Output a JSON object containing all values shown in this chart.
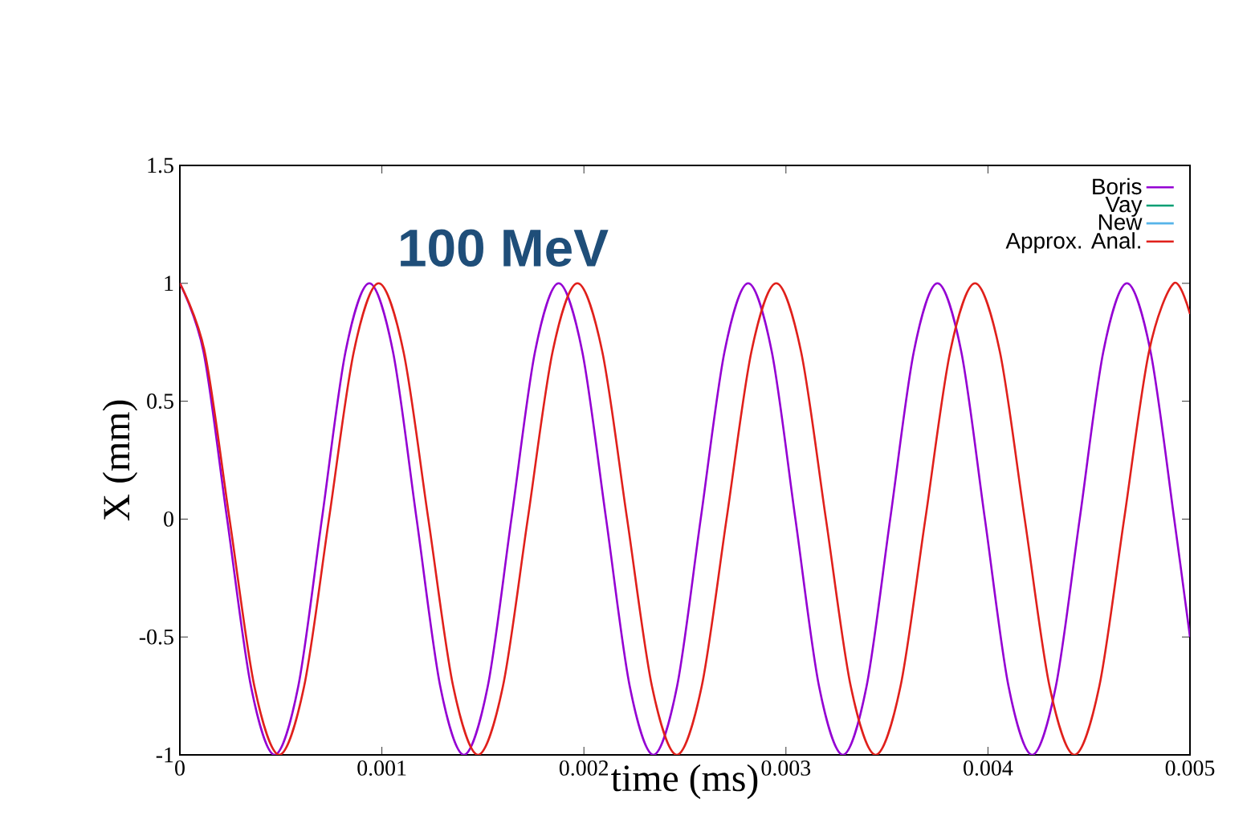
{
  "chart_data": {
    "type": "line",
    "title": "100 MeV",
    "xlabel": "time (ms)",
    "ylabel": "X (mm)",
    "xlim": [
      0,
      0.005
    ],
    "ylim": [
      -1,
      1.5
    ],
    "xticks": [
      0,
      0.001,
      0.002,
      0.003,
      0.004,
      0.005
    ],
    "yticks": [
      -1,
      -0.5,
      0,
      0.5,
      1,
      1.5
    ],
    "legend": "top right",
    "marker": "none",
    "series": [
      {
        "name": "Boris",
        "color": "#9400d3",
        "x": [
          0,
          0.000117,
          0.000234,
          0.000352,
          0.000469,
          0.000586,
          0.000703,
          0.00082,
          0.000938,
          0.001055,
          0.001172,
          0.001289,
          0.001406,
          0.001524,
          0.001641,
          0.001758,
          0.001875,
          0.001992,
          0.00211,
          0.002227,
          0.002344,
          0.002461,
          0.002578,
          0.002696,
          0.002813,
          0.00293,
          0.003047,
          0.003164,
          0.003282,
          0.003399,
          0.003516,
          0.003633,
          0.00375,
          0.003868,
          0.003985,
          0.004102,
          0.004219,
          0.004336,
          0.004454,
          0.004571,
          0.004688,
          0.004805,
          0.004922,
          0.005
        ],
        "values": [
          1,
          0.71,
          0,
          -0.71,
          -1,
          -0.71,
          0,
          0.71,
          1,
          0.71,
          0,
          -0.71,
          -1,
          -0.71,
          0,
          0.71,
          1,
          0.71,
          0,
          -0.71,
          -1,
          -0.71,
          0,
          0.71,
          1,
          0.71,
          0,
          -0.71,
          -1,
          -0.71,
          0,
          0.71,
          1,
          0.71,
          0,
          -0.71,
          -1,
          -0.71,
          0,
          0.71,
          1,
          0.71,
          0,
          -0.5
        ]
      },
      {
        "name": "Vay",
        "color": "#009e73",
        "values": [
          null
        ]
      },
      {
        "name": "New",
        "color": "#56b4e9",
        "values": [
          null
        ]
      },
      {
        "name": "Approx. Anal.",
        "color": "#e0201b",
        "x": [
          0,
          0.000123,
          0.000246,
          0.000369,
          0.000492,
          0.000615,
          0.000738,
          0.000861,
          0.000984,
          0.001107,
          0.00123,
          0.001353,
          0.001476,
          0.001599,
          0.001722,
          0.001845,
          0.001968,
          0.002091,
          0.002214,
          0.002337,
          0.00246,
          0.002583,
          0.002706,
          0.002829,
          0.002952,
          0.003075,
          0.003198,
          0.003321,
          0.003444,
          0.003567,
          0.00369,
          0.003813,
          0.003936,
          0.004059,
          0.004182,
          0.004305,
          0.004428,
          0.004551,
          0.004674,
          0.004797,
          0.00492,
          0.005
        ],
        "values": [
          1,
          0.71,
          0,
          -0.71,
          -1,
          -0.71,
          0,
          0.71,
          1,
          0.71,
          0,
          -0.71,
          -1,
          -0.71,
          0,
          0.71,
          1,
          0.71,
          0,
          -0.71,
          -1,
          -0.71,
          0,
          0.71,
          1,
          0.71,
          0,
          -0.71,
          -1,
          -0.71,
          0,
          0.71,
          1,
          0.71,
          0,
          -0.71,
          -1,
          -0.71,
          0,
          0.71,
          1,
          0.87
        ]
      }
    ]
  }
}
